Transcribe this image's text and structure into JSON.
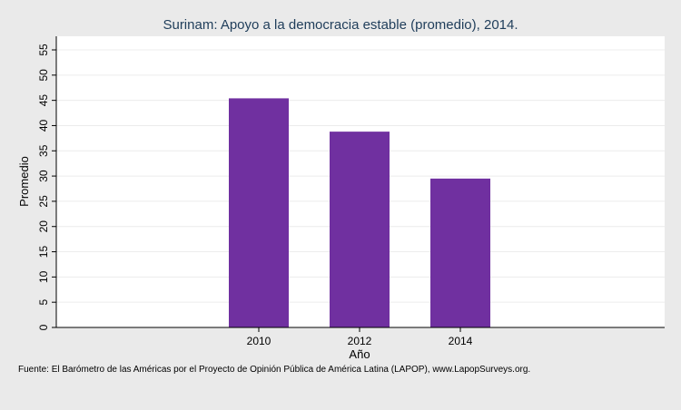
{
  "chart_data": {
    "type": "bar",
    "title": "Surinam: Apoyo a la democracia estable (promedio), 2014.",
    "xlabel": "Año",
    "ylabel": "Promedio",
    "categories": [
      "2010",
      "2012",
      "2014"
    ],
    "values": [
      45.4,
      38.8,
      29.5
    ],
    "ylim": [
      0,
      55
    ],
    "yticks": [
      0,
      5,
      10,
      15,
      20,
      25,
      30,
      35,
      40,
      45,
      50,
      55
    ],
    "grid": true,
    "legend": "none",
    "bar_color": "#7030a0",
    "source": "Fuente: El Barómetro de las Américas por el Proyecto de Opinión Pública de América Latina (LAPOP), www.LapopSurveys.org."
  }
}
